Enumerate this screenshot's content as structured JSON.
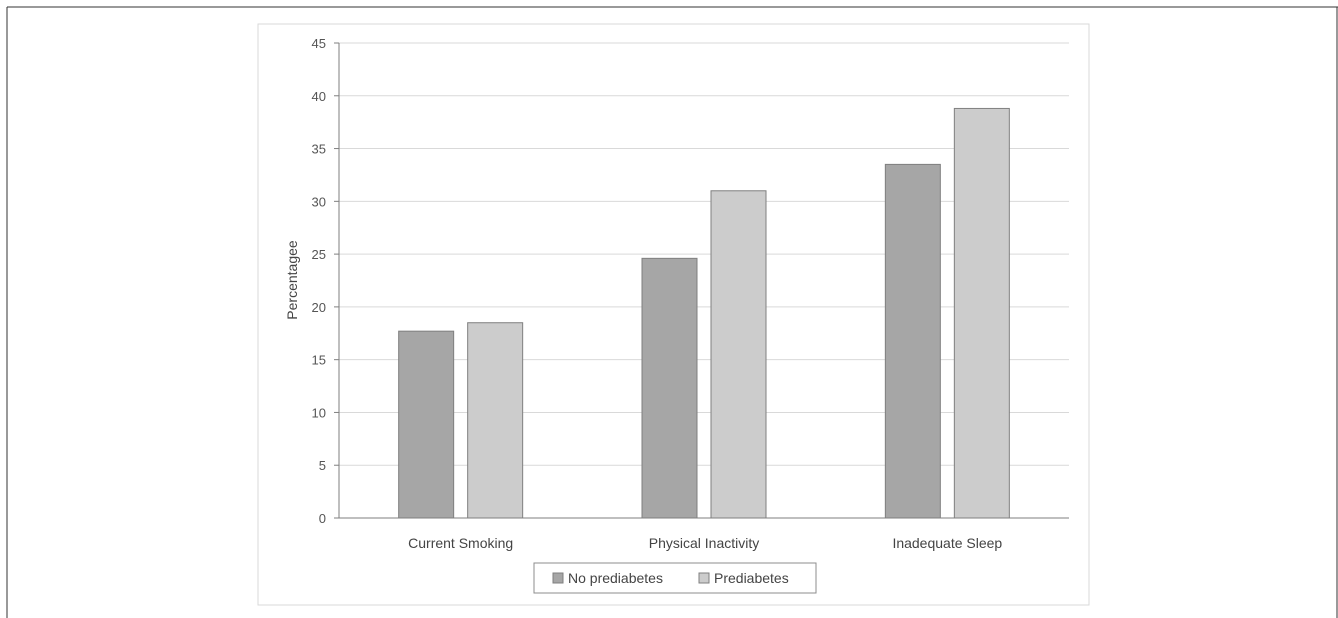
{
  "chart_data": {
    "type": "bar",
    "title": "",
    "xlabel": "",
    "ylabel": "Percentagee",
    "ylim": [
      0,
      45
    ],
    "yticks": [
      0,
      5,
      10,
      15,
      20,
      25,
      30,
      35,
      40,
      45
    ],
    "grid": true,
    "legend_position": "bottom",
    "categories": [
      "Current Smoking",
      "Physical Inactivity",
      "Inadequate Sleep"
    ],
    "series": [
      {
        "name": "No prediabetes",
        "color": "#a6a6a6",
        "values": [
          17.7,
          24.6,
          33.5
        ]
      },
      {
        "name": "Prediabetes",
        "color": "#cccccc",
        "values": [
          18.5,
          31.0,
          38.8
        ]
      }
    ]
  }
}
